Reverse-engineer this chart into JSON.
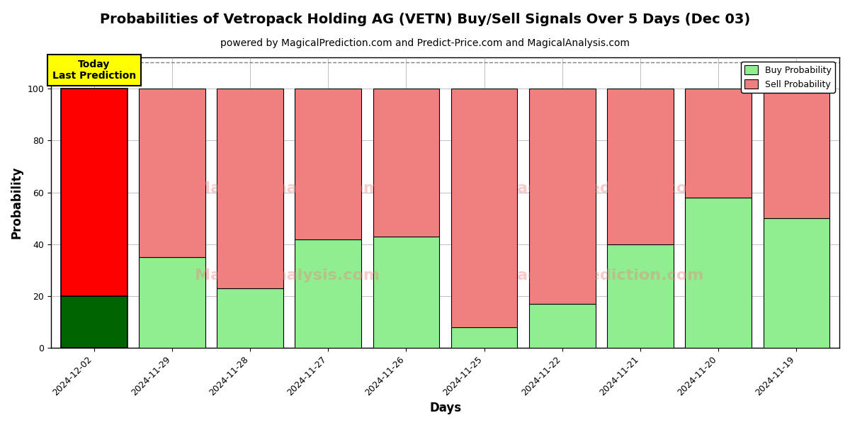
{
  "title": "Probabilities of Vetropack Holding AG (VETN) Buy/Sell Signals Over 5 Days (Dec 03)",
  "subtitle": "powered by MagicalPrediction.com and Predict-Price.com and MagicalAnalysis.com",
  "xlabel": "Days",
  "ylabel": "Probability",
  "categories": [
    "2024-12-02",
    "2024-11-29",
    "2024-11-28",
    "2024-11-27",
    "2024-11-26",
    "2024-11-25",
    "2024-11-22",
    "2024-11-21",
    "2024-11-20",
    "2024-11-19"
  ],
  "buy_values": [
    20,
    35,
    23,
    42,
    43,
    8,
    17,
    40,
    58,
    50
  ],
  "sell_values": [
    80,
    65,
    77,
    58,
    57,
    92,
    83,
    60,
    42,
    50
  ],
  "today_buy_color": "#006400",
  "today_sell_color": "#FF0000",
  "buy_color": "#90EE90",
  "sell_color": "#F08080",
  "today_label": "Today\nLast Prediction",
  "today_label_bg": "#FFFF00",
  "legend_buy": "Buy Probability",
  "legend_sell": "Sell Probability",
  "ylim": [
    0,
    112
  ],
  "dashed_line_y": 110,
  "watermark_left": "MagicalAnalysis.com",
  "watermark_right": "MagicalPrediction.com",
  "title_fontsize": 14,
  "subtitle_fontsize": 10,
  "axis_label_fontsize": 12,
  "tick_fontsize": 9
}
